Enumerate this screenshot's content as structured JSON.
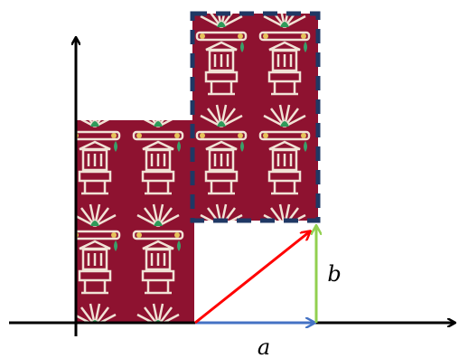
{
  "labels": {
    "a": "a",
    "b": "b"
  }
}
